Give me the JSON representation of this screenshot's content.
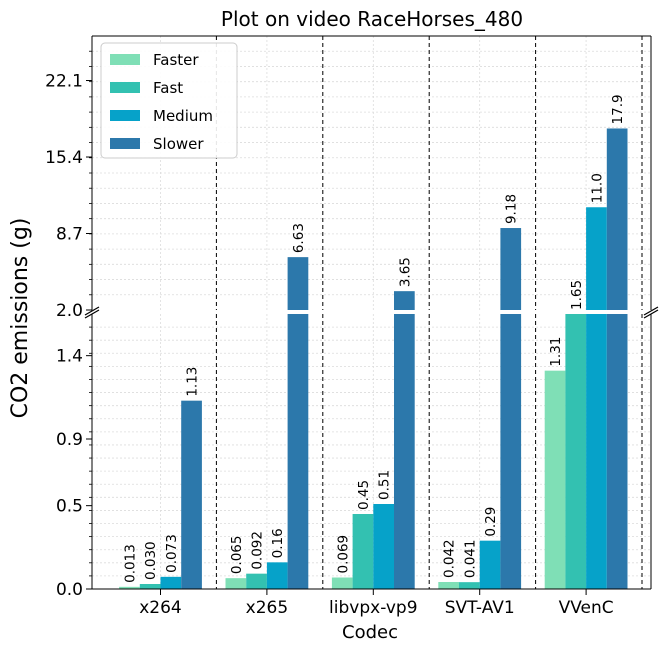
{
  "chart_data": {
    "type": "bar",
    "title": "Plot on video RaceHorses_480",
    "xlabel": "Codec",
    "ylabel": "CO2 emissions (g)",
    "categories": [
      "x264",
      "x265",
      "libvpx-vp9",
      "SVT-AV1",
      "VVenC"
    ],
    "series": [
      {
        "name": "Faster",
        "color": "#7fdfb6",
        "values": [
          0.013,
          0.065,
          0.069,
          0.042,
          1.31
        ]
      },
      {
        "name": "Fast",
        "color": "#33c1b1",
        "values": [
          0.03,
          0.092,
          0.45,
          0.041,
          1.65
        ]
      },
      {
        "name": "Medium",
        "color": "#06a2c9",
        "values": [
          0.073,
          0.16,
          0.51,
          0.29,
          11.0
        ]
      },
      {
        "name": "Slower",
        "color": "#2c78ab",
        "values": [
          1.13,
          6.63,
          3.65,
          9.18,
          17.9
        ]
      }
    ],
    "data_labels": [
      [
        "0.013",
        "0.065",
        "0.069",
        "0.042",
        "1.31"
      ],
      [
        "0.030",
        "0.092",
        "0.45",
        "0.041",
        "1.65"
      ],
      [
        "0.073",
        "0.16",
        "0.51",
        "0.29",
        "11.0"
      ],
      [
        "1.13",
        "6.63",
        "3.65",
        "9.18",
        "17.9"
      ]
    ],
    "y_axis": {
      "broken": true,
      "lower_range": [
        0,
        1.65
      ],
      "upper_range": [
        2.0,
        26.0
      ],
      "lower_ticks": [
        "0.0",
        "0.5",
        "0.9",
        "1.4"
      ],
      "upper_ticks": [
        "2.0",
        "8.7",
        "15.4",
        "22.1"
      ]
    },
    "grid": true,
    "legend_position": "top-left"
  }
}
